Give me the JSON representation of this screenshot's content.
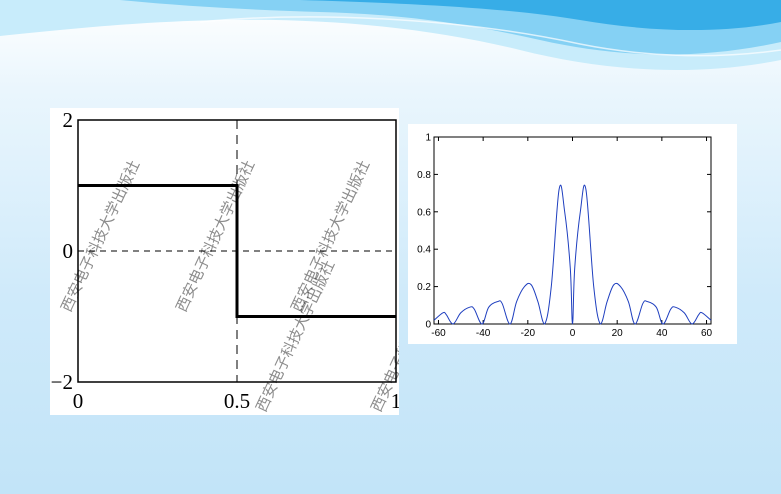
{
  "colors": {
    "banner_light": "#c8ecfb",
    "banner_mid": "#79cdf2",
    "banner_dark": "#2fa9e6",
    "line_blue": "#1f3fbf",
    "black": "#000000"
  },
  "watermark": {
    "text": "西安电子科技大学出版社"
  },
  "chart_data": [
    {
      "type": "line",
      "title": "",
      "xlabel": "",
      "ylabel": "",
      "xlim": [
        0,
        1
      ],
      "ylim": [
        -2,
        2
      ],
      "x_ticks": [
        0,
        0.5,
        1
      ],
      "x_tick_labels": [
        "0",
        "0.5",
        "1"
      ],
      "y_ticks": [
        -2,
        0,
        2
      ],
      "y_tick_labels": [
        "−2",
        "0",
        "2"
      ],
      "series": [
        {
          "x": [
            0,
            0.5,
            0.5,
            1
          ],
          "y": [
            1,
            1,
            -1,
            -1
          ]
        }
      ],
      "guides": {
        "vertical_dashed_x": 0.5,
        "horizontal_dashed_y": 0
      },
      "grid": false
    },
    {
      "type": "line",
      "title": "",
      "xlabel": "",
      "ylabel": "",
      "xlim": [
        -62,
        62
      ],
      "ylim": [
        0,
        1
      ],
      "x_ticks": [
        -60,
        -40,
        -20,
        0,
        20,
        40,
        60
      ],
      "x_tick_labels": [
        "-60",
        "-40",
        "-20",
        "0",
        "20",
        "40",
        "60"
      ],
      "y_ticks": [
        0,
        0.2,
        0.4,
        0.6,
        0.8,
        1
      ],
      "y_tick_labels": [
        "0",
        "0.2",
        "0.4",
        "0.6",
        "0.8",
        "1"
      ],
      "series": [
        {
          "x": [
            -62,
            -58,
            -56.5,
            -53.5,
            -50,
            -46,
            -44,
            -40.5,
            -37.5,
            -33.5,
            -31.5,
            -28,
            -25,
            -21.5,
            -18.5,
            -15.5,
            -12.5,
            -9.5,
            -6,
            -3.5,
            -1,
            0,
            1,
            3.5,
            6,
            9.5,
            12.5,
            15.5,
            18.5,
            21.5,
            25,
            28,
            31.5,
            33.5,
            37.5,
            40.5,
            44,
            46,
            50,
            53.5,
            56.5,
            58,
            62
          ],
          "y": [
            0.02,
            0.06,
            0.05,
            0,
            0.06,
            0.09,
            0.08,
            0,
            0.09,
            0.12,
            0.11,
            0,
            0.12,
            0.2,
            0.21,
            0.12,
            0,
            0.2,
            0.72,
            0.6,
            0.3,
            0,
            0.3,
            0.6,
            0.72,
            0.2,
            0,
            0.12,
            0.21,
            0.2,
            0.12,
            0,
            0.11,
            0.12,
            0.09,
            0,
            0.08,
            0.09,
            0.06,
            0,
            0.05,
            0.06,
            0.02
          ]
        }
      ],
      "grid": false
    }
  ]
}
